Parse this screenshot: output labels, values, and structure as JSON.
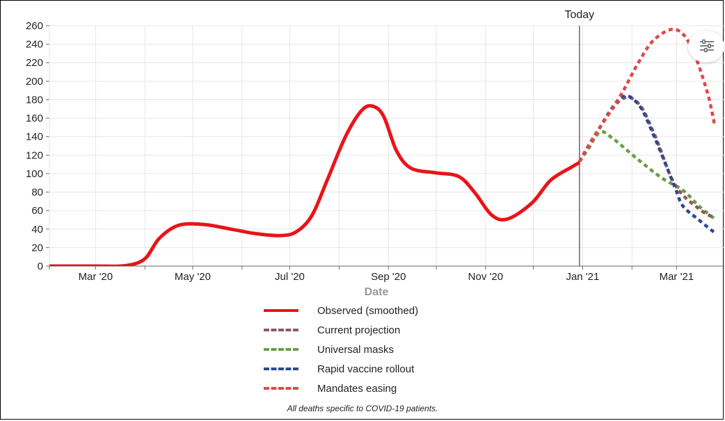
{
  "chart_data": {
    "type": "line",
    "xlabel": "Date",
    "ylabel": "",
    "ylim": [
      0,
      260
    ],
    "y_ticks": [
      "0",
      "20",
      "40",
      "60",
      "80",
      "100",
      "120",
      "140",
      "160",
      "180",
      "200",
      "220",
      "240",
      "260"
    ],
    "x_ticks": [
      {
        "label": "Mar '20",
        "date": "2020-03-01"
      },
      {
        "label": "May '20",
        "date": "2020-05-01"
      },
      {
        "label": "Jul '20",
        "date": "2020-07-01"
      },
      {
        "label": "Sep '20",
        "date": "2020-09-01"
      },
      {
        "label": "Nov '20",
        "date": "2020-11-01"
      },
      {
        "label": "Jan '21",
        "date": "2021-01-01"
      },
      {
        "label": "Mar '21",
        "date": "2021-03-01"
      }
    ],
    "grid": true,
    "today": {
      "label": "Today",
      "date": "2020-12-30"
    },
    "series": [
      {
        "name": "Observed (smoothed)",
        "color": "#e8141a",
        "style": "solid",
        "points": [
          [
            "2020-02-01",
            0
          ],
          [
            "2020-03-01",
            0
          ],
          [
            "2020-03-20",
            0.5
          ],
          [
            "2020-04-01",
            8
          ],
          [
            "2020-04-10",
            30
          ],
          [
            "2020-04-22",
            44
          ],
          [
            "2020-05-08",
            45
          ],
          [
            "2020-05-25",
            40
          ],
          [
            "2020-06-10",
            35
          ],
          [
            "2020-06-25",
            33
          ],
          [
            "2020-07-05",
            37
          ],
          [
            "2020-07-15",
            55
          ],
          [
            "2020-07-25",
            95
          ],
          [
            "2020-08-05",
            140
          ],
          [
            "2020-08-15",
            168
          ],
          [
            "2020-08-22",
            173
          ],
          [
            "2020-08-29",
            162
          ],
          [
            "2020-09-06",
            125
          ],
          [
            "2020-09-15",
            106
          ],
          [
            "2020-09-30",
            101
          ],
          [
            "2020-10-15",
            97
          ],
          [
            "2020-10-25",
            80
          ],
          [
            "2020-11-05",
            55
          ],
          [
            "2020-11-15",
            51
          ],
          [
            "2020-11-30",
            68
          ],
          [
            "2020-12-12",
            93
          ],
          [
            "2020-12-25",
            107
          ],
          [
            "2020-12-30",
            112
          ]
        ]
      },
      {
        "name": "Current projection",
        "color": "#8a5a62",
        "style": "dashed",
        "points": [
          [
            "2020-12-30",
            113
          ],
          [
            "2021-01-10",
            145
          ],
          [
            "2021-01-25",
            180
          ],
          [
            "2021-02-05",
            176
          ],
          [
            "2021-02-15",
            143
          ],
          [
            "2021-02-28",
            88
          ],
          [
            "2021-03-15",
            62
          ],
          [
            "2021-03-25",
            52
          ]
        ]
      },
      {
        "name": "Universal masks",
        "color": "#6a9e45",
        "style": "dashed",
        "points": [
          [
            "2020-12-30",
            113
          ],
          [
            "2021-01-05",
            128
          ],
          [
            "2021-01-12",
            145
          ],
          [
            "2021-01-20",
            138
          ],
          [
            "2021-02-05",
            115
          ],
          [
            "2021-02-20",
            95
          ],
          [
            "2021-03-05",
            82
          ],
          [
            "2021-03-15",
            65
          ],
          [
            "2021-03-25",
            51
          ]
        ]
      },
      {
        "name": "Rapid vaccine rollout",
        "color": "#2e4a8e",
        "style": "dashed",
        "points": [
          [
            "2020-12-30",
            113
          ],
          [
            "2021-01-10",
            145
          ],
          [
            "2021-01-25",
            182
          ],
          [
            "2021-02-05",
            175
          ],
          [
            "2021-02-15",
            140
          ],
          [
            "2021-02-28",
            85
          ],
          [
            "2021-03-05",
            65
          ],
          [
            "2021-03-15",
            50
          ],
          [
            "2021-03-25",
            36
          ]
        ]
      },
      {
        "name": "Mandates easing",
        "color": "#e04848",
        "style": "dashed",
        "points": [
          [
            "2020-12-30",
            113
          ],
          [
            "2021-01-10",
            145
          ],
          [
            "2021-01-25",
            185
          ],
          [
            "2021-02-05",
            220
          ],
          [
            "2021-02-15",
            245
          ],
          [
            "2021-02-28",
            256
          ],
          [
            "2021-03-10",
            238
          ],
          [
            "2021-03-20",
            190
          ],
          [
            "2021-03-25",
            152
          ]
        ]
      }
    ],
    "caption": "All deaths specific to COVID-19 patients."
  },
  "icons": {
    "menu": "sliders-icon"
  }
}
